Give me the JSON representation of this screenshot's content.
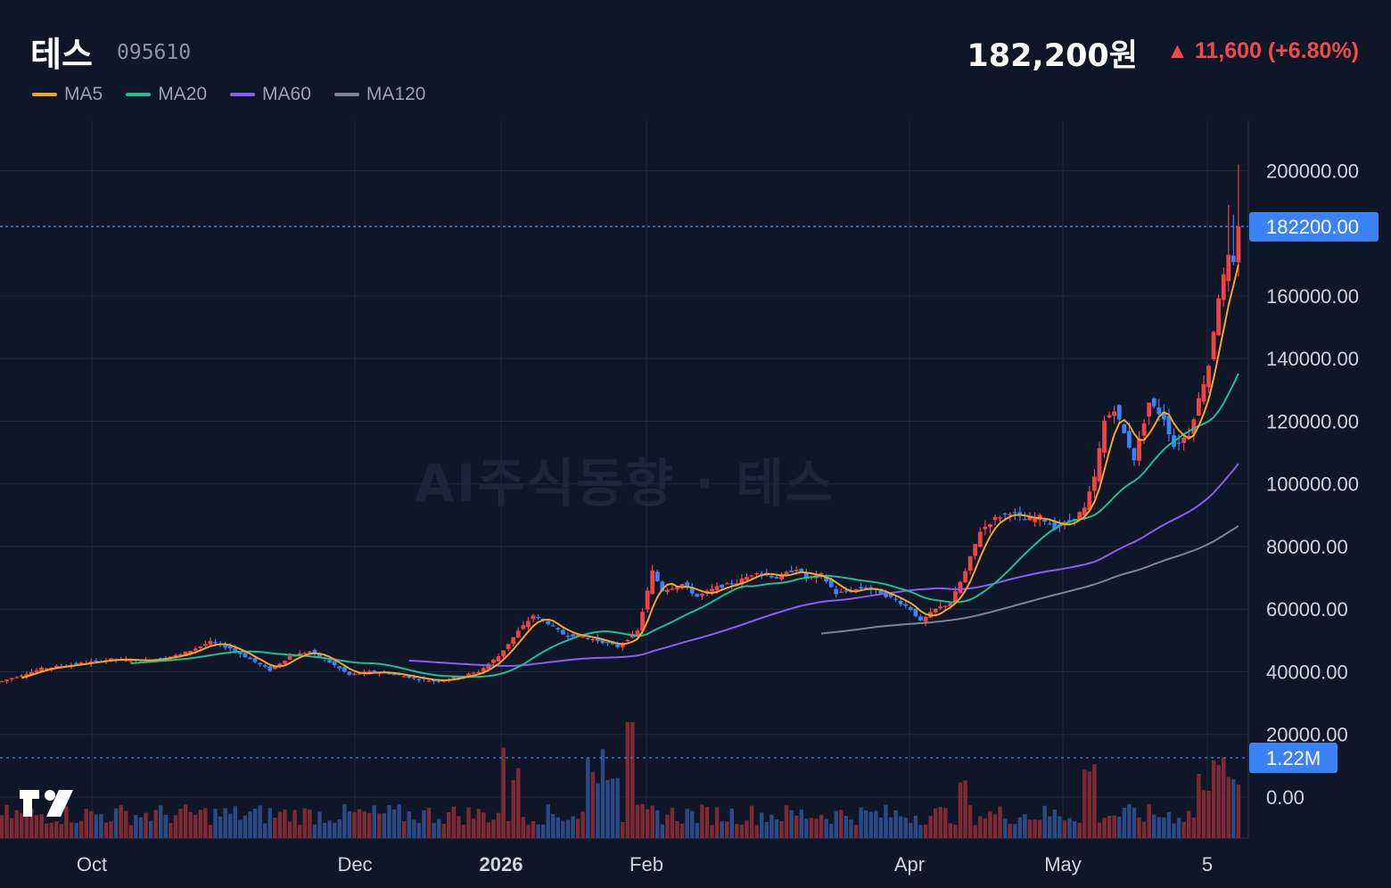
{
  "header": {
    "name": "테스",
    "code": "095610",
    "price": "182,200원",
    "change": "▲ 11,600 (+6.80%)"
  },
  "legend": [
    {
      "label": "MA5",
      "color": "#f5a623"
    },
    {
      "label": "MA20",
      "color": "#1fbf8f"
    },
    {
      "label": "MA60",
      "color": "#8b5cf6"
    },
    {
      "label": "MA120",
      "color": "#7b8494"
    }
  ],
  "watermark": "AI주식동향 · 테스",
  "colors": {
    "up": "#ef4444",
    "down": "#3b82f6",
    "volume_up": "#7f2a33",
    "volume_down": "#2a4a86",
    "price_tag": "#3b82f6"
  },
  "chart_data": {
    "type": "candlestick",
    "y_axis": {
      "min": 0,
      "max": 200000,
      "ticks": [
        "200000.00",
        "160000.00",
        "140000.00",
        "120000.00",
        "100000.00",
        "80000.00",
        "60000.00",
        "40000.00",
        "20000.00",
        "0.00"
      ]
    },
    "x_axis": {
      "labels": [
        {
          "text": "Oct",
          "bold": false
        },
        {
          "text": "Dec",
          "bold": false
        },
        {
          "text": "2026",
          "bold": true
        },
        {
          "text": "Feb",
          "bold": false
        },
        {
          "text": "Apr",
          "bold": false
        },
        {
          "text": "May",
          "bold": false
        },
        {
          "text": "5",
          "bold": false
        }
      ]
    },
    "last_price_label": "182200.00",
    "last_price": 182200,
    "volume_label": "1.22M",
    "price_path": [
      [
        0,
        37000
      ],
      [
        8,
        41000
      ],
      [
        15,
        42500
      ],
      [
        22,
        44000
      ],
      [
        29,
        43500
      ],
      [
        36,
        45500
      ],
      [
        42,
        49500
      ],
      [
        46,
        47500
      ],
      [
        50,
        44000
      ],
      [
        54,
        40500
      ],
      [
        58,
        45000
      ],
      [
        62,
        46500
      ],
      [
        65,
        44000
      ],
      [
        70,
        39000
      ],
      [
        74,
        40000
      ],
      [
        78,
        39500
      ],
      [
        83,
        38000
      ],
      [
        87,
        37000
      ],
      [
        91,
        38000
      ],
      [
        96,
        40000
      ],
      [
        100,
        45000
      ],
      [
        104,
        53000
      ],
      [
        107,
        58000
      ],
      [
        110,
        55500
      ],
      [
        113,
        52000
      ],
      [
        116,
        51500
      ],
      [
        120,
        50000
      ],
      [
        124,
        48000
      ],
      [
        128,
        53000
      ],
      [
        131,
        72000
      ],
      [
        133,
        66000
      ],
      [
        137,
        68000
      ],
      [
        140,
        64000
      ],
      [
        144,
        67000
      ],
      [
        148,
        68500
      ],
      [
        152,
        72000
      ],
      [
        156,
        70000
      ],
      [
        160,
        73000
      ],
      [
        162,
        70000
      ],
      [
        165,
        71000
      ],
      [
        168,
        65000
      ],
      [
        171,
        66000
      ],
      [
        174,
        67000
      ],
      [
        177,
        65000
      ],
      [
        180,
        63000
      ],
      [
        183,
        60000
      ],
      [
        185,
        56000
      ],
      [
        188,
        60000
      ],
      [
        191,
        62000
      ],
      [
        194,
        72000
      ],
      [
        197,
        85000
      ],
      [
        200,
        89000
      ],
      [
        203,
        91000
      ],
      [
        206,
        88500
      ],
      [
        209,
        89500
      ],
      [
        212,
        86000
      ],
      [
        215,
        88000
      ],
      [
        218,
        92000
      ],
      [
        220,
        102000
      ],
      [
        222,
        120000
      ],
      [
        224,
        124000
      ],
      [
        226,
        116000
      ],
      [
        228,
        108000
      ],
      [
        231,
        126000
      ],
      [
        234,
        121000
      ],
      [
        236,
        112000
      ],
      [
        239,
        116000
      ],
      [
        241,
        127000
      ],
      [
        243,
        138000
      ],
      [
        245,
        160000
      ],
      [
        247,
        172000
      ],
      [
        248,
        170000
      ],
      [
        249,
        182200
      ]
    ]
  }
}
